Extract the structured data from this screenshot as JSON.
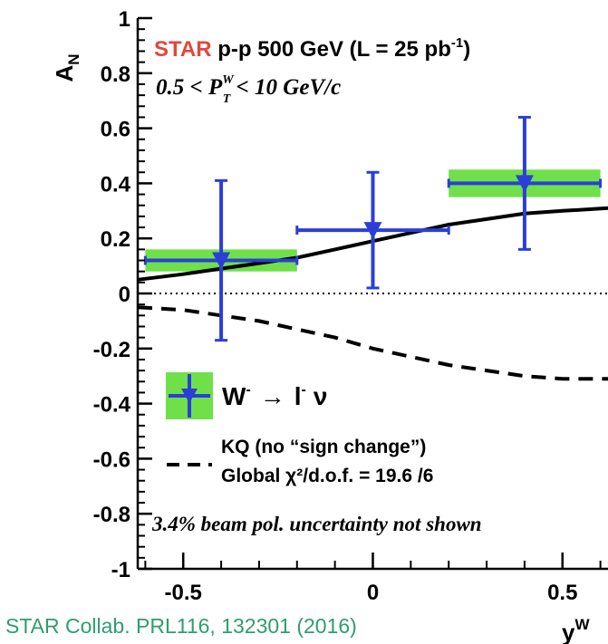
{
  "chart_data": {
    "type": "scatter",
    "title": "",
    "xlabel": "y^W",
    "ylabel": "A_N",
    "xlim": [
      -0.62,
      0.62
    ],
    "ylim": [
      -1,
      1
    ],
    "xticks": [
      -0.5,
      0,
      0.5
    ],
    "xtick_labels": [
      "-0.5",
      "0",
      "0.5"
    ],
    "yticks": [
      -1,
      -0.8,
      -0.6,
      -0.4,
      -0.2,
      0,
      0.2,
      0.4,
      0.6,
      0.8,
      1
    ],
    "ytick_labels": [
      "-1",
      "-0.8",
      "-0.6",
      "-0.4",
      "-0.2",
      "0",
      "0.2",
      "0.4",
      "0.6",
      "0.8",
      "1"
    ],
    "zero_line": "dotted",
    "series": [
      {
        "name": "W⁻ → l⁻ ν",
        "color": "#2b3fd6",
        "marker": "triangle-down",
        "points": [
          {
            "x": -0.4,
            "y": 0.12,
            "xerr": 0.2,
            "yerr_low": 0.29,
            "yerr_high": 0.29,
            "sys": 0.04
          },
          {
            "x": 0.0,
            "y": 0.23,
            "xerr": 0.2,
            "yerr_low": 0.21,
            "yerr_high": 0.21,
            "sys": 0.0
          },
          {
            "x": 0.4,
            "y": 0.4,
            "xerr": 0.2,
            "yerr_low": 0.24,
            "yerr_high": 0.24,
            "sys": 0.05
          }
        ],
        "sys_band_color": "#6fe04a"
      },
      {
        "name": "theory-solid",
        "style": "solid",
        "color": "#000000",
        "x": [
          -0.62,
          -0.5,
          -0.4,
          -0.3,
          -0.2,
          -0.1,
          0.0,
          0.1,
          0.2,
          0.3,
          0.4,
          0.5,
          0.62
        ],
        "y": [
          0.05,
          0.07,
          0.09,
          0.11,
          0.13,
          0.16,
          0.19,
          0.22,
          0.25,
          0.27,
          0.29,
          0.3,
          0.31
        ]
      },
      {
        "name": "KQ (no “sign change”)",
        "style": "dashed",
        "color": "#000000",
        "x": [
          -0.62,
          -0.5,
          -0.4,
          -0.3,
          -0.2,
          -0.1,
          0.0,
          0.1,
          0.2,
          0.3,
          0.4,
          0.5,
          0.62
        ],
        "y": [
          -0.05,
          -0.06,
          -0.08,
          -0.1,
          -0.13,
          -0.16,
          -0.2,
          -0.23,
          -0.26,
          -0.28,
          -0.3,
          -0.31,
          -0.31
        ]
      }
    ],
    "annotations": {
      "experiment": "STAR",
      "experiment_rest": " p-p 500 GeV (L = 25 pb",
      "lumi_exp": "-1",
      "lumi_close": ")",
      "pt_low": "0.5 < ",
      "pt_var": "P",
      "pt_sup": "W",
      "pt_sub": "T",
      "pt_high": " < 10 GeV/c",
      "legend_w": "W",
      "legend_w_sup": "-",
      "legend_arrow": "→",
      "legend_l": "l",
      "legend_l_sup": "-",
      "legend_nu": "ν",
      "kq_line1": "KQ (no “sign change”)",
      "kq_line2": "Global χ²/d.o.f. = 19.6  /6",
      "beam_note": "3.4% beam pol. uncertainty not shown",
      "ylabel_main": "A",
      "ylabel_sub": "N",
      "xlabel_main": "y",
      "xlabel_sup": "W"
    },
    "colors": {
      "experiment": "#e0483a",
      "points": "#2b3fd6",
      "band": "#6fe04a"
    }
  },
  "citation": "STAR Collab. PRL116, 132301 (2016)"
}
